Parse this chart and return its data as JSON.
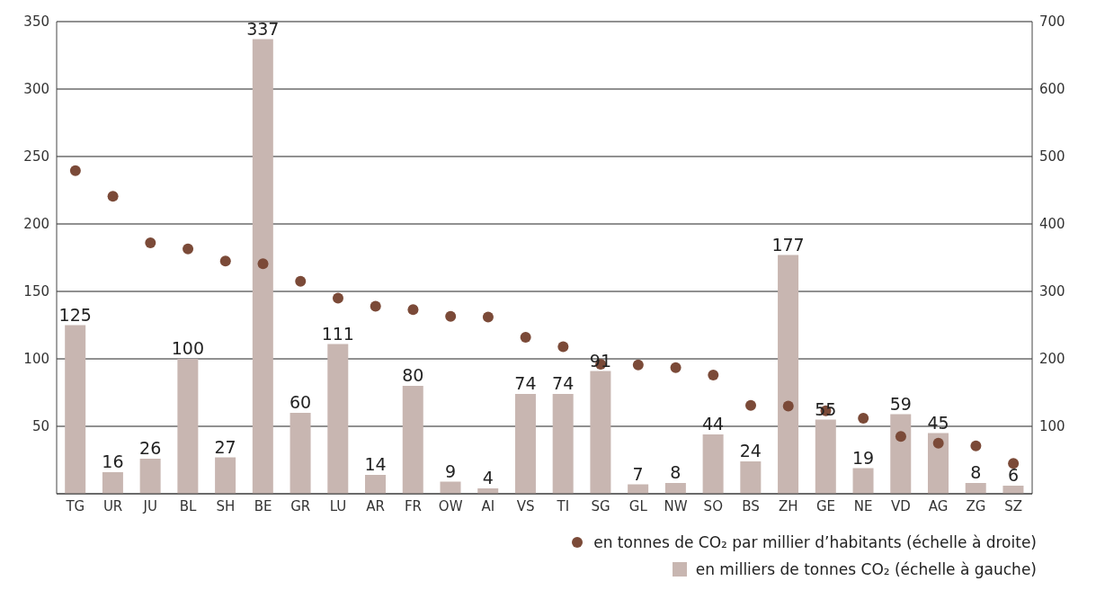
{
  "chart_data": {
    "type": "bar",
    "categories": [
      "TG",
      "UR",
      "JU",
      "BL",
      "SH",
      "BE",
      "GR",
      "LU",
      "AR",
      "FR",
      "OW",
      "AI",
      "VS",
      "TI",
      "SG",
      "GL",
      "NW",
      "SO",
      "BS",
      "ZH",
      "GE",
      "NE",
      "VD",
      "AG",
      "ZG",
      "SZ"
    ],
    "series": [
      {
        "name": "en tonnes de CO₂ par millier d’habitants (échelle à droite)",
        "type": "scatter",
        "axis": "y2",
        "color": "#7b4a38",
        "values": [
          479,
          441,
          372,
          363,
          345,
          341,
          315,
          290,
          278,
          273,
          263,
          262,
          232,
          218,
          192,
          191,
          187,
          176,
          131,
          130,
          123,
          112,
          85,
          75,
          71,
          45
        ]
      },
      {
        "name": "en milliers de tonnes CO₂ (échelle à gauche)",
        "color": "#c8b6b1",
        "values": [
          125,
          16,
          26,
          100,
          27,
          337,
          60,
          111,
          14,
          80,
          9,
          4,
          74,
          74,
          91,
          7,
          8,
          44,
          24,
          177,
          55,
          19,
          59,
          45,
          8,
          6
        ],
        "value_labels": [
          "125",
          "16",
          "26",
          "100",
          "27",
          "337",
          "60",
          "111",
          "14",
          "80",
          "9",
          "4",
          "74",
          "74",
          "91",
          "7",
          "8",
          "44",
          "24",
          "177",
          "55",
          "19",
          "59",
          "45",
          "8",
          "6"
        ]
      }
    ],
    "ylim": [
      0,
      350
    ],
    "yticks": [
      50,
      100,
      150,
      200,
      250,
      300,
      350
    ],
    "y2lim": [
      0,
      700
    ],
    "y2ticks": [
      100,
      200,
      300,
      400,
      500,
      600,
      700
    ],
    "grid": "y",
    "legend": "bottom right",
    "marker": "circle"
  }
}
